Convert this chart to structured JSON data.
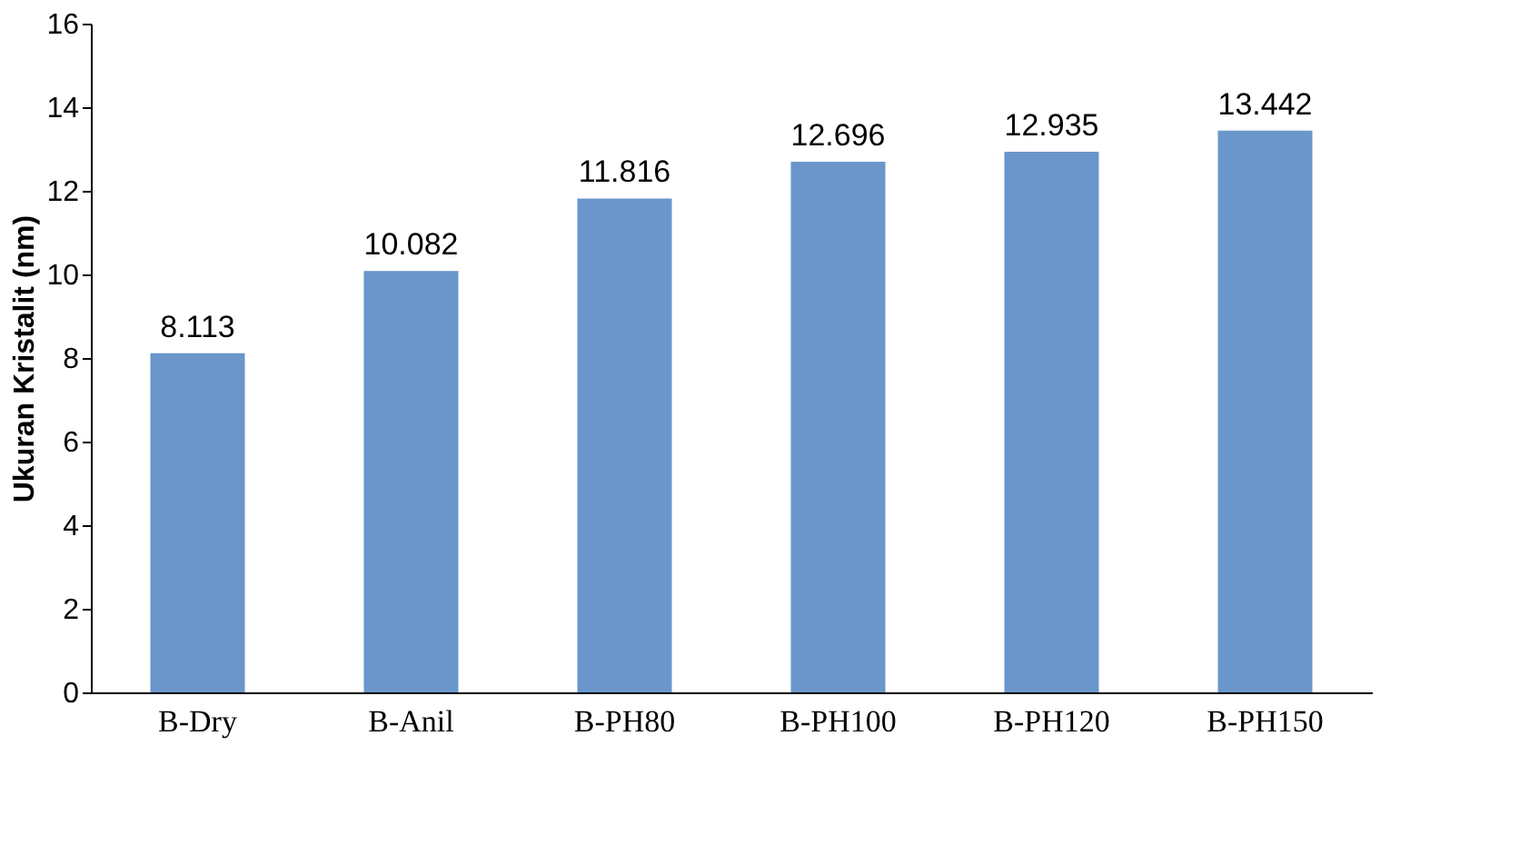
{
  "chart_data": {
    "type": "bar",
    "ylabel": "Ukuran Kristalit (nm)",
    "categories": [
      "B-Dry",
      "B-Anil",
      "B-PH80",
      "B-PH100",
      "B-PH120",
      "B-PH150"
    ],
    "values": [
      8.113,
      10.082,
      11.816,
      12.696,
      12.935,
      13.442
    ],
    "value_labels": [
      "8.113",
      "10.082",
      "11.816",
      "12.696",
      "12.935",
      "13.442"
    ],
    "color": "#6a96cb",
    "ylim": [
      0,
      16
    ],
    "yticks": [
      0,
      2,
      4,
      6,
      8,
      10,
      12,
      14,
      16
    ],
    "grid": false
  }
}
